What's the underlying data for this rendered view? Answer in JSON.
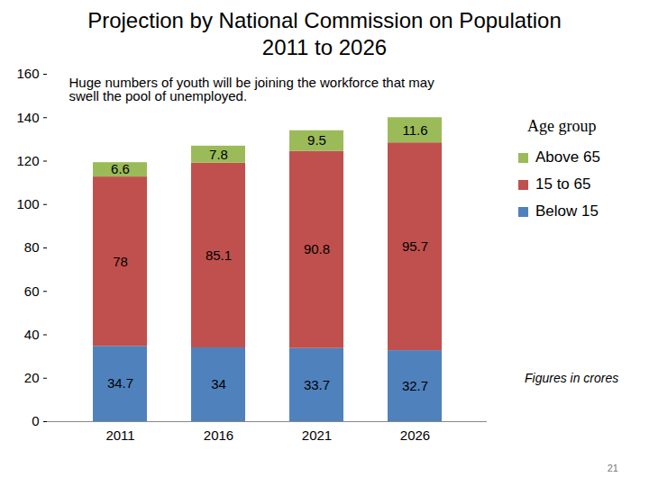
{
  "chart_data": {
    "type": "bar",
    "title": "Projection by National Commission on Population",
    "subtitle": "2011 to 2026",
    "annotations": [
      "Huge numbers of youth will be joining the workforce that may swell the pool of unemployed.",
      "Figures in crores"
    ],
    "legend_title": "Age group",
    "page_number": "21",
    "categories": [
      "2011",
      "2016",
      "2021",
      "2026"
    ],
    "series": [
      {
        "name": "Below 15",
        "color": "#4f81bd",
        "values": [
          34.7,
          34,
          33.7,
          32.7
        ]
      },
      {
        "name": "15 to 65",
        "color": "#c0504d",
        "values": [
          78,
          85.1,
          90.8,
          95.7
        ]
      },
      {
        "name": "Above 65",
        "color": "#9bbb59",
        "values": [
          6.6,
          7.8,
          9.5,
          11.6
        ]
      }
    ],
    "stacked": true,
    "data_labels": true,
    "legend": "right",
    "grid": false,
    "ylim": [
      0,
      160
    ],
    "yticks": [
      0,
      20,
      40,
      60,
      80,
      100,
      120,
      140,
      160
    ]
  }
}
